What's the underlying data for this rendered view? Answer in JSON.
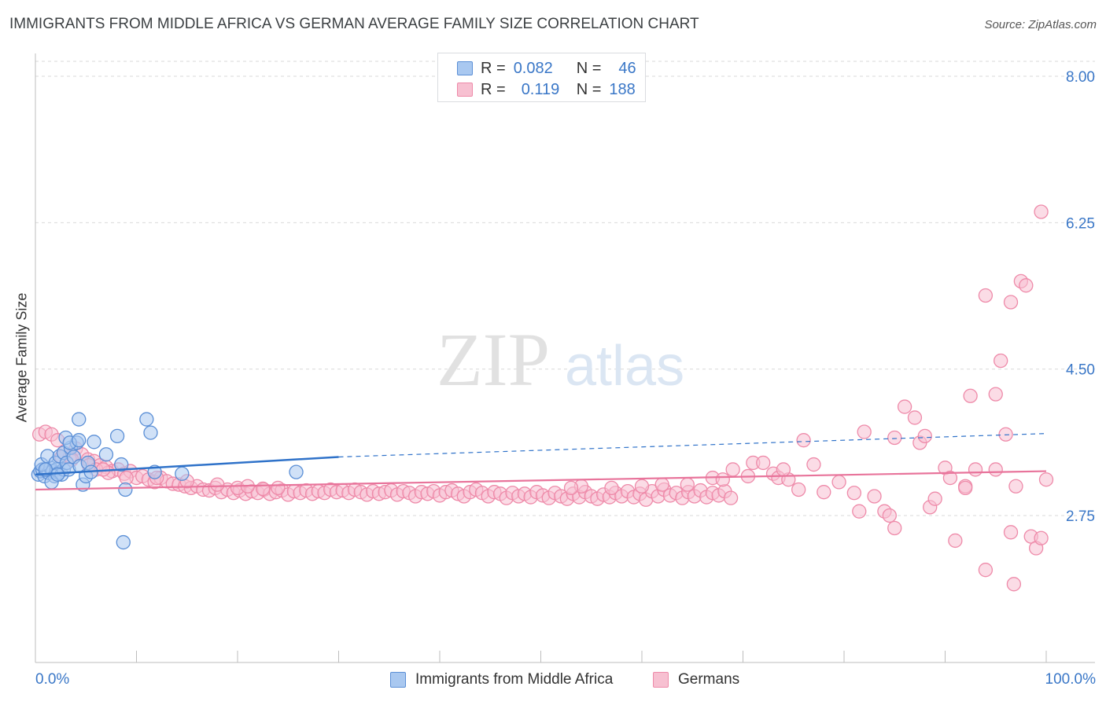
{
  "header": {
    "title": "IMMIGRANTS FROM MIDDLE AFRICA VS GERMAN AVERAGE FAMILY SIZE CORRELATION CHART",
    "source": "Source: ZipAtlas.com"
  },
  "watermark": {
    "zip": "ZIP",
    "atlas": "atlas"
  },
  "legend": {
    "rows": [
      {
        "r_label": "R =",
        "r_value": "0.082",
        "n_label": "N =",
        "n_value": "46"
      },
      {
        "r_label": "R =",
        "r_value": "0.119",
        "n_label": "N =",
        "n_value": "188"
      }
    ]
  },
  "colors": {
    "blue_fill": "#a9c8f0",
    "blue_stroke": "#5b8fd6",
    "blue_line": "#2f72c9",
    "pink_fill": "#f7c0d1",
    "pink_stroke": "#ee8aa9",
    "pink_line": "#e8749b",
    "value_text": "#3a77c7",
    "grid": "#d9d9d9"
  },
  "chart_data": {
    "type": "scatter",
    "title": "IMMIGRANTS FROM MIDDLE AFRICA VS GERMAN AVERAGE FAMILY SIZE CORRELATION CHART",
    "xlabel": "",
    "ylabel": "Average Family Size",
    "xlim": [
      0,
      100
    ],
    "ylim": [
      1.55,
      8.25
    ],
    "x_tick_labels": [
      "0.0%",
      "100.0%"
    ],
    "y_ticks": [
      2.75,
      4.5,
      6.25,
      8.0
    ],
    "y_tick_labels": [
      "2.75",
      "4.50",
      "6.25",
      "8.00"
    ],
    "grid": "horizontal dashed",
    "legend_position": "top-center",
    "series": [
      {
        "name": "Immigrants from Middle Africa",
        "color": "#a9c8f0",
        "r": 0.082,
        "n": 46,
        "trend": {
          "x": [
            0,
            30
          ],
          "y": [
            3.24,
            3.45
          ],
          "dashed_extension_to": [
            100,
            3.73
          ]
        },
        "points": [
          [
            0.3,
            3.24
          ],
          [
            0.5,
            3.28
          ],
          [
            0.7,
            3.3
          ],
          [
            0.9,
            3.22
          ],
          [
            1.1,
            3.3
          ],
          [
            1.3,
            3.26
          ],
          [
            1.5,
            3.32
          ],
          [
            1.7,
            3.28
          ],
          [
            1.9,
            3.22
          ],
          [
            2.1,
            3.3
          ],
          [
            2.3,
            3.26
          ],
          [
            2.6,
            3.24
          ],
          [
            2.8,
            3.3
          ],
          [
            0.6,
            3.36
          ],
          [
            1.2,
            3.46
          ],
          [
            1.6,
            3.15
          ],
          [
            2.0,
            3.38
          ],
          [
            2.4,
            3.46
          ],
          [
            2.8,
            3.5
          ],
          [
            3.1,
            3.38
          ],
          [
            3.3,
            3.3
          ],
          [
            3.5,
            3.56
          ],
          [
            3.8,
            3.45
          ],
          [
            4.1,
            3.62
          ],
          [
            4.4,
            3.34
          ],
          [
            4.7,
            3.12
          ],
          [
            5.0,
            3.22
          ],
          [
            5.2,
            3.38
          ],
          [
            5.5,
            3.27
          ],
          [
            3.0,
            3.68
          ],
          [
            3.4,
            3.62
          ],
          [
            4.3,
            3.65
          ],
          [
            4.3,
            3.9
          ],
          [
            5.8,
            3.63
          ],
          [
            7.0,
            3.48
          ],
          [
            8.1,
            3.7
          ],
          [
            8.5,
            3.36
          ],
          [
            8.9,
            3.06
          ],
          [
            11.0,
            3.9
          ],
          [
            11.4,
            3.74
          ],
          [
            11.8,
            3.27
          ],
          [
            14.5,
            3.25
          ],
          [
            25.8,
            3.27
          ],
          [
            8.7,
            2.43
          ],
          [
            1.0,
            3.3
          ],
          [
            2.2,
            3.24
          ]
        ]
      },
      {
        "name": "Germans",
        "color": "#f7c0d1",
        "r": 0.119,
        "n": 188,
        "trend": {
          "x": [
            0,
            100
          ],
          "y": [
            3.06,
            3.28
          ]
        },
        "points": [
          [
            0.4,
            3.72
          ],
          [
            1.0,
            3.75
          ],
          [
            1.6,
            3.72
          ],
          [
            2.2,
            3.65
          ],
          [
            2.8,
            3.5
          ],
          [
            3.4,
            3.45
          ],
          [
            4.0,
            3.55
          ],
          [
            4.6,
            3.48
          ],
          [
            5.2,
            3.42
          ],
          [
            5.8,
            3.4
          ],
          [
            6.4,
            3.35
          ],
          [
            7.0,
            3.33
          ],
          [
            7.6,
            3.28
          ],
          [
            8.2,
            3.3
          ],
          [
            8.8,
            3.25
          ],
          [
            9.4,
            3.28
          ],
          [
            10.0,
            3.2
          ],
          [
            10.6,
            3.22
          ],
          [
            11.2,
            3.18
          ],
          [
            11.8,
            3.15
          ],
          [
            12.4,
            3.2
          ],
          [
            13.0,
            3.16
          ],
          [
            13.6,
            3.13
          ],
          [
            14.2,
            3.12
          ],
          [
            14.8,
            3.1
          ],
          [
            15.4,
            3.08
          ],
          [
            16.0,
            3.1
          ],
          [
            16.6,
            3.06
          ],
          [
            17.2,
            3.05
          ],
          [
            17.8,
            3.08
          ],
          [
            18.4,
            3.03
          ],
          [
            19.0,
            3.06
          ],
          [
            19.6,
            3.02
          ],
          [
            20.2,
            3.05
          ],
          [
            20.8,
            3.01
          ],
          [
            21.4,
            3.04
          ],
          [
            22.0,
            3.02
          ],
          [
            22.6,
            3.06
          ],
          [
            23.2,
            3.01
          ],
          [
            23.8,
            3.03
          ],
          [
            24.4,
            3.05
          ],
          [
            25.0,
            3.0
          ],
          [
            25.6,
            3.04
          ],
          [
            26.2,
            3.02
          ],
          [
            26.8,
            3.05
          ],
          [
            27.4,
            3.01
          ],
          [
            28.0,
            3.04
          ],
          [
            28.6,
            3.02
          ],
          [
            29.2,
            3.06
          ],
          [
            29.8,
            3.03
          ],
          [
            30.4,
            3.05
          ],
          [
            31.0,
            3.02
          ],
          [
            31.6,
            3.06
          ],
          [
            32.2,
            3.03
          ],
          [
            32.8,
            3.0
          ],
          [
            33.4,
            3.04
          ],
          [
            34.0,
            3.01
          ],
          [
            34.6,
            3.03
          ],
          [
            35.2,
            3.05
          ],
          [
            35.8,
            3.0
          ],
          [
            36.4,
            3.04
          ],
          [
            37.0,
            3.02
          ],
          [
            37.6,
            2.98
          ],
          [
            38.2,
            3.03
          ],
          [
            38.8,
            3.01
          ],
          [
            39.4,
            3.04
          ],
          [
            40.0,
            2.99
          ],
          [
            40.6,
            3.03
          ],
          [
            41.2,
            3.05
          ],
          [
            41.8,
            3.01
          ],
          [
            42.4,
            2.98
          ],
          [
            43.0,
            3.03
          ],
          [
            43.6,
            3.06
          ],
          [
            44.2,
            3.02
          ],
          [
            44.8,
            2.98
          ],
          [
            45.4,
            3.03
          ],
          [
            46.0,
            3.01
          ],
          [
            46.6,
            2.96
          ],
          [
            47.2,
            3.02
          ],
          [
            47.8,
            2.98
          ],
          [
            48.4,
            3.01
          ],
          [
            49.0,
            2.97
          ],
          [
            49.6,
            3.03
          ],
          [
            50.2,
            2.99
          ],
          [
            50.8,
            2.96
          ],
          [
            51.4,
            3.02
          ],
          [
            52.0,
            2.98
          ],
          [
            52.6,
            2.95
          ],
          [
            53.2,
            3.01
          ],
          [
            53.8,
            2.97
          ],
          [
            54.4,
            3.03
          ],
          [
            55.0,
            2.98
          ],
          [
            55.6,
            2.95
          ],
          [
            56.2,
            3.0
          ],
          [
            56.8,
            2.97
          ],
          [
            57.4,
            3.02
          ],
          [
            58.0,
            2.98
          ],
          [
            58.6,
            3.04
          ],
          [
            59.2,
            2.97
          ],
          [
            59.8,
            3.01
          ],
          [
            60.4,
            2.94
          ],
          [
            61.0,
            3.04
          ],
          [
            61.6,
            2.98
          ],
          [
            62.2,
            3.06
          ],
          [
            62.8,
            2.99
          ],
          [
            63.4,
            3.02
          ],
          [
            64.0,
            2.96
          ],
          [
            64.6,
            3.03
          ],
          [
            65.2,
            2.98
          ],
          [
            65.8,
            3.05
          ],
          [
            66.4,
            2.97
          ],
          [
            67.0,
            3.02
          ],
          [
            67.6,
            2.99
          ],
          [
            68.2,
            3.04
          ],
          [
            68.8,
            2.96
          ],
          [
            2.6,
            3.45
          ],
          [
            3.6,
            3.42
          ],
          [
            5.3,
            3.35
          ],
          [
            6.0,
            3.3
          ],
          [
            7.2,
            3.26
          ],
          [
            9.0,
            3.2
          ],
          [
            12.0,
            3.2
          ],
          [
            15.0,
            3.16
          ],
          [
            18.0,
            3.12
          ],
          [
            6.7,
            3.3
          ],
          [
            20.0,
            3.08
          ],
          [
            21.0,
            3.1
          ],
          [
            22.5,
            3.07
          ],
          [
            24.0,
            3.08
          ],
          [
            54.0,
            3.1
          ],
          [
            53.0,
            3.08
          ],
          [
            57.0,
            3.08
          ],
          [
            60.0,
            3.1
          ],
          [
            62.0,
            3.12
          ],
          [
            64.5,
            3.12
          ],
          [
            67.0,
            3.2
          ],
          [
            68.0,
            3.18
          ],
          [
            69.0,
            3.3
          ],
          [
            71.0,
            3.38
          ],
          [
            70.5,
            3.22
          ],
          [
            72.0,
            3.38
          ],
          [
            73.0,
            3.25
          ],
          [
            73.5,
            3.2
          ],
          [
            74.5,
            3.18
          ],
          [
            74.0,
            3.3
          ],
          [
            76.0,
            3.65
          ],
          [
            75.5,
            3.06
          ],
          [
            77.0,
            3.36
          ],
          [
            78.0,
            3.03
          ],
          [
            79.5,
            3.15
          ],
          [
            81.0,
            3.02
          ],
          [
            81.5,
            2.8
          ],
          [
            82.0,
            3.75
          ],
          [
            83.0,
            2.98
          ],
          [
            84.0,
            2.8
          ],
          [
            84.5,
            2.75
          ],
          [
            85.0,
            2.6
          ],
          [
            85.0,
            3.68
          ],
          [
            86.0,
            4.05
          ],
          [
            87.0,
            3.92
          ],
          [
            87.5,
            3.62
          ],
          [
            88.0,
            3.7
          ],
          [
            88.5,
            2.85
          ],
          [
            89.0,
            2.95
          ],
          [
            90.0,
            3.32
          ],
          [
            90.5,
            3.2
          ],
          [
            91.0,
            2.45
          ],
          [
            92.0,
            3.1
          ],
          [
            92.0,
            3.08
          ],
          [
            92.5,
            4.18
          ],
          [
            93.0,
            3.3
          ],
          [
            94.0,
            5.38
          ],
          [
            94.0,
            2.1
          ],
          [
            95.0,
            4.2
          ],
          [
            95.0,
            3.3
          ],
          [
            95.5,
            4.6
          ],
          [
            96.0,
            3.72
          ],
          [
            96.5,
            5.3
          ],
          [
            96.5,
            2.55
          ],
          [
            96.8,
            1.93
          ],
          [
            97.0,
            3.1
          ],
          [
            97.5,
            5.55
          ],
          [
            98.0,
            5.5
          ],
          [
            98.5,
            2.5
          ],
          [
            99.0,
            2.36
          ],
          [
            99.5,
            6.38
          ],
          [
            100.0,
            3.18
          ],
          [
            99.5,
            2.48
          ]
        ]
      }
    ]
  }
}
